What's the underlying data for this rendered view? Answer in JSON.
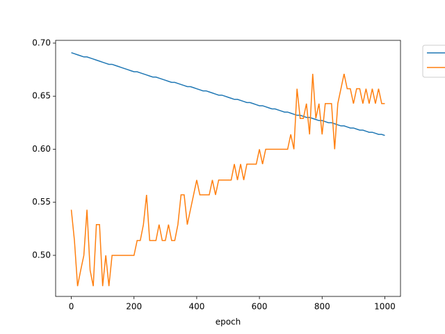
{
  "chart_data": {
    "type": "line",
    "xlabel": "epoch",
    "x": [
      0,
      10,
      20,
      30,
      40,
      50,
      60,
      70,
      80,
      90,
      100,
      110,
      120,
      130,
      140,
      150,
      160,
      170,
      180,
      190,
      200,
      210,
      220,
      230,
      240,
      250,
      260,
      270,
      280,
      290,
      300,
      310,
      320,
      330,
      340,
      350,
      360,
      370,
      380,
      390,
      400,
      410,
      420,
      430,
      440,
      450,
      460,
      470,
      480,
      490,
      500,
      510,
      520,
      530,
      540,
      550,
      560,
      570,
      580,
      590,
      600,
      610,
      620,
      630,
      640,
      650,
      660,
      670,
      680,
      690,
      700,
      710,
      720,
      730,
      740,
      750,
      760,
      770,
      780,
      790,
      800,
      810,
      820,
      830,
      840,
      850,
      860,
      870,
      880,
      890,
      900,
      910,
      920,
      930,
      940,
      950,
      960,
      970,
      980,
      990,
      1000
    ],
    "series": [
      {
        "color": "#1f77b4",
        "values": [
          0.691,
          0.69,
          0.689,
          0.688,
          0.687,
          0.687,
          0.686,
          0.685,
          0.684,
          0.683,
          0.682,
          0.681,
          0.68,
          0.68,
          0.679,
          0.678,
          0.677,
          0.676,
          0.675,
          0.674,
          0.673,
          0.673,
          0.672,
          0.671,
          0.67,
          0.669,
          0.668,
          0.668,
          0.667,
          0.666,
          0.665,
          0.664,
          0.663,
          0.663,
          0.662,
          0.661,
          0.66,
          0.659,
          0.659,
          0.658,
          0.657,
          0.656,
          0.655,
          0.655,
          0.654,
          0.653,
          0.652,
          0.651,
          0.651,
          0.65,
          0.649,
          0.648,
          0.647,
          0.647,
          0.646,
          0.645,
          0.644,
          0.644,
          0.643,
          0.642,
          0.641,
          0.641,
          0.64,
          0.639,
          0.638,
          0.638,
          0.637,
          0.636,
          0.635,
          0.635,
          0.634,
          0.633,
          0.632,
          0.632,
          0.631,
          0.63,
          0.63,
          0.629,
          0.628,
          0.627,
          0.627,
          0.626,
          0.625,
          0.625,
          0.624,
          0.623,
          0.622,
          0.622,
          0.621,
          0.62,
          0.62,
          0.619,
          0.618,
          0.618,
          0.617,
          0.616,
          0.616,
          0.615,
          0.614,
          0.614,
          0.613
        ]
      },
      {
        "color": "#ff7f0e",
        "values": [
          0.543,
          0.514,
          0.471,
          0.486,
          0.5,
          0.543,
          0.486,
          0.471,
          0.529,
          0.529,
          0.471,
          0.5,
          0.471,
          0.5,
          0.5,
          0.5,
          0.5,
          0.5,
          0.5,
          0.5,
          0.5,
          0.514,
          0.514,
          0.529,
          0.557,
          0.514,
          0.514,
          0.514,
          0.529,
          0.514,
          0.514,
          0.529,
          0.514,
          0.514,
          0.529,
          0.557,
          0.557,
          0.529,
          0.543,
          0.557,
          0.571,
          0.557,
          0.557,
          0.557,
          0.557,
          0.571,
          0.557,
          0.571,
          0.571,
          0.571,
          0.571,
          0.571,
          0.586,
          0.571,
          0.586,
          0.571,
          0.586,
          0.586,
          0.586,
          0.586,
          0.6,
          0.586,
          0.6,
          0.6,
          0.6,
          0.6,
          0.6,
          0.6,
          0.6,
          0.6,
          0.614,
          0.6,
          0.657,
          0.629,
          0.629,
          0.643,
          0.614,
          0.671,
          0.629,
          0.643,
          0.614,
          0.643,
          0.643,
          0.643,
          0.6,
          0.643,
          0.657,
          0.671,
          0.657,
          0.657,
          0.643,
          0.657,
          0.657,
          0.643,
          0.657,
          0.643,
          0.657,
          0.643,
          0.657,
          0.643,
          0.643
        ]
      }
    ],
    "xlim": [
      -50,
      1050
    ],
    "xticks": [
      0,
      200,
      400,
      600,
      800,
      1000
    ],
    "ylim": [
      0.4613,
      0.7026
    ],
    "yticks": [
      {
        "value": 0.5,
        "label": "0.50"
      },
      {
        "value": 0.55,
        "label": "0.55"
      },
      {
        "value": 0.6,
        "label": "0.60"
      },
      {
        "value": 0.65,
        "label": "0.65"
      },
      {
        "value": 0.7,
        "label": "0.70"
      }
    ],
    "grid": false,
    "legend": "outside upper right"
  }
}
